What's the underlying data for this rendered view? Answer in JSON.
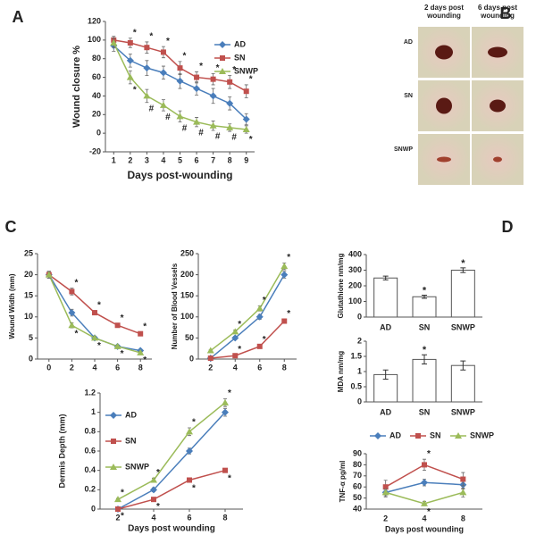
{
  "chart_data": [
    {
      "type": "line",
      "panel": "A",
      "y_label": "Wound closure %",
      "x_label": "Days post-wounding",
      "x": [
        1,
        2,
        3,
        4,
        5,
        6,
        7,
        8,
        9
      ],
      "xlim": [
        0.5,
        9.5
      ],
      "xticks": [
        1,
        2,
        3,
        4,
        5,
        6,
        7,
        8,
        9
      ],
      "ylim": [
        -20,
        120
      ],
      "yticks": [
        -20,
        0,
        20,
        40,
        60,
        80,
        100,
        120
      ],
      "legend": "upper right",
      "series": [
        {
          "name": "AD",
          "color": "#4a7ebb",
          "marker": "diamond",
          "annotation_side": "above",
          "values": [
            94,
            78,
            70,
            65,
            56,
            48,
            40,
            32,
            15
          ],
          "errors": [
            6,
            7,
            8,
            7,
            8,
            7,
            8,
            7,
            6
          ]
        },
        {
          "name": "SN",
          "color": "#c0504d",
          "marker": "square",
          "annotation_side": "above",
          "values": [
            100,
            97,
            92,
            87,
            70,
            60,
            58,
            55,
            45
          ],
          "errors": [
            4,
            5,
            6,
            6,
            7,
            6,
            6,
            7,
            7
          ],
          "annotations": [
            null,
            "*",
            "*",
            "*",
            "*",
            "*",
            "*",
            "*",
            "*"
          ]
        },
        {
          "name": "SNWP",
          "color": "#9bbb59",
          "marker": "triangle",
          "annotation_side": "below",
          "values": [
            97,
            60,
            40,
            30,
            18,
            12,
            8,
            6,
            4
          ],
          "errors": [
            5,
            7,
            7,
            6,
            6,
            5,
            5,
            4,
            4
          ],
          "annotations": [
            null,
            "*",
            "#",
            "#",
            "#",
            "#",
            "#",
            "#",
            "*"
          ]
        }
      ]
    },
    {
      "type": "line",
      "panel": "C",
      "y_label": "Wound Width (mm)",
      "x": [
        0,
        2,
        4,
        6,
        8
      ],
      "xlim": [
        -1,
        9
      ],
      "xticks": [
        0,
        2,
        4,
        6,
        8
      ],
      "ylim": [
        0,
        25
      ],
      "yticks": [
        0,
        5,
        10,
        15,
        20,
        25
      ],
      "series": [
        {
          "name": "AD",
          "color": "#4a7ebb",
          "marker": "diamond",
          "annotation_side": "below",
          "values": [
            20,
            11,
            5,
            3,
            2
          ],
          "errors": [
            0.8,
            0.8,
            0.4,
            0.3,
            0.3
          ]
        },
        {
          "name": "SN",
          "color": "#c0504d",
          "marker": "square",
          "annotation_side": "above",
          "values": [
            20,
            16,
            11,
            8,
            6
          ],
          "errors": [
            0.8,
            0.8,
            0.5,
            0.4,
            0.4
          ],
          "annotations": [
            null,
            "*",
            "*",
            "*",
            "*"
          ]
        },
        {
          "name": "SNWP",
          "color": "#9bbb59",
          "marker": "triangle",
          "annotation_side": "below",
          "values": [
            20,
            8,
            5,
            3,
            1.5
          ],
          "errors": [
            0.8,
            0.6,
            0.4,
            0.3,
            0.3
          ],
          "annotations": [
            null,
            "*",
            "*",
            "*",
            "*"
          ]
        }
      ]
    },
    {
      "type": "line",
      "y_label": "Number of Blood Vessels",
      "x": [
        2,
        4,
        6,
        8
      ],
      "xlim": [
        1,
        9
      ],
      "xticks": [
        2,
        4,
        6,
        8
      ],
      "ylim": [
        0,
        250
      ],
      "yticks": [
        0,
        50,
        100,
        150,
        200,
        250
      ],
      "series": [
        {
          "name": "AD",
          "color": "#4a7ebb",
          "marker": "diamond",
          "annotation_side": "above",
          "values": [
            2,
            50,
            100,
            200
          ],
          "errors": [
            1,
            4,
            6,
            8
          ]
        },
        {
          "name": "SN",
          "color": "#c0504d",
          "marker": "square",
          "annotation_side": "above",
          "values": [
            2,
            8,
            30,
            90
          ],
          "errors": [
            1,
            2,
            3,
            5
          ],
          "annotations": [
            null,
            "*",
            "*",
            "*"
          ]
        },
        {
          "name": "SNWP",
          "color": "#9bbb59",
          "marker": "triangle",
          "annotation_side": "above",
          "values": [
            20,
            65,
            120,
            220
          ],
          "errors": [
            2,
            4,
            6,
            8
          ],
          "annotations": [
            null,
            "*",
            "*",
            "*"
          ]
        }
      ]
    },
    {
      "type": "line",
      "y_label": "Dermis Depth (mm)",
      "x_label": "Days post wounding",
      "x": [
        2,
        4,
        6,
        8
      ],
      "xlim": [
        1,
        9
      ],
      "xticks": [
        2,
        4,
        6,
        8
      ],
      "ylim": [
        0,
        1.2
      ],
      "yticks": [
        0,
        0.2,
        0.4,
        0.6,
        0.8,
        1,
        1.2
      ],
      "legend": "left",
      "series": [
        {
          "name": "AD",
          "color": "#4a7ebb",
          "marker": "diamond",
          "annotation_side": "above",
          "values": [
            0,
            0.2,
            0.6,
            1.0
          ],
          "errors": [
            0.01,
            0.02,
            0.03,
            0.04
          ]
        },
        {
          "name": "SN",
          "color": "#c0504d",
          "marker": "square",
          "annotation_side": "below",
          "values": [
            0,
            0.1,
            0.3,
            0.4
          ],
          "errors": [
            0.01,
            0.01,
            0.02,
            0.02
          ],
          "annotations": [
            "*",
            "*",
            "*",
            "*"
          ]
        },
        {
          "name": "SNWP",
          "color": "#9bbb59",
          "marker": "triangle",
          "annotation_side": "above",
          "values": [
            0.1,
            0.3,
            0.8,
            1.1
          ],
          "errors": [
            0.01,
            0.02,
            0.04,
            0.04
          ],
          "annotations": [
            "*",
            "*",
            "*",
            "*"
          ]
        }
      ]
    },
    {
      "type": "bar",
      "panel": "D",
      "y_label": "Glutathione nm/mg",
      "categories": [
        "AD",
        "SN",
        "SNWP"
      ],
      "values": [
        250,
        130,
        300
      ],
      "errors": [
        12,
        10,
        15
      ],
      "annotations": [
        null,
        "*",
        "*"
      ],
      "color": "#ffffff",
      "edgecolor": "#555555",
      "ylim": [
        0,
        400
      ],
      "yticks": [
        0,
        100,
        200,
        300,
        400
      ]
    },
    {
      "type": "bar",
      "y_label": "MDA  nm/mg",
      "categories": [
        "AD",
        "SN",
        "SNWP"
      ],
      "values": [
        0.9,
        1.4,
        1.2
      ],
      "errors": [
        0.15,
        0.15,
        0.15
      ],
      "annotations": [
        null,
        "*",
        null
      ],
      "color": "#ffffff",
      "edgecolor": "#555555",
      "ylim": [
        0,
        2
      ],
      "yticks": [
        0,
        0.5,
        1,
        1.5,
        2
      ]
    },
    {
      "type": "line",
      "y_label": "TNF-α pg/ml",
      "x_label": "Days post wounding",
      "categories": [
        "2",
        "4",
        "8"
      ],
      "ylim": [
        40,
        90
      ],
      "yticks": [
        40,
        50,
        60,
        70,
        80,
        90
      ],
      "legend": "top",
      "series": [
        {
          "name": "AD",
          "color": "#4a7ebb",
          "marker": "diamond",
          "annotation_side": "above",
          "values": [
            55,
            64,
            62
          ],
          "errors": [
            4,
            3,
            4
          ]
        },
        {
          "name": "SN",
          "color": "#c0504d",
          "marker": "square",
          "annotation_side": "above",
          "values": [
            60,
            80,
            67
          ],
          "errors": [
            6,
            5,
            6
          ],
          "annotations": [
            null,
            "*",
            null
          ]
        },
        {
          "name": "SNWP",
          "color": "#9bbb59",
          "marker": "triangle",
          "annotation_side": "below",
          "values": [
            55,
            45,
            55
          ],
          "errors": [
            3,
            2,
            4
          ],
          "annotations": [
            null,
            "*",
            null
          ]
        }
      ]
    }
  ],
  "photos": {
    "panel": "B",
    "columns": [
      "2 days post wounding",
      "6 days post wounding"
    ],
    "rows": [
      "AD",
      "SN",
      "SNWP"
    ]
  }
}
